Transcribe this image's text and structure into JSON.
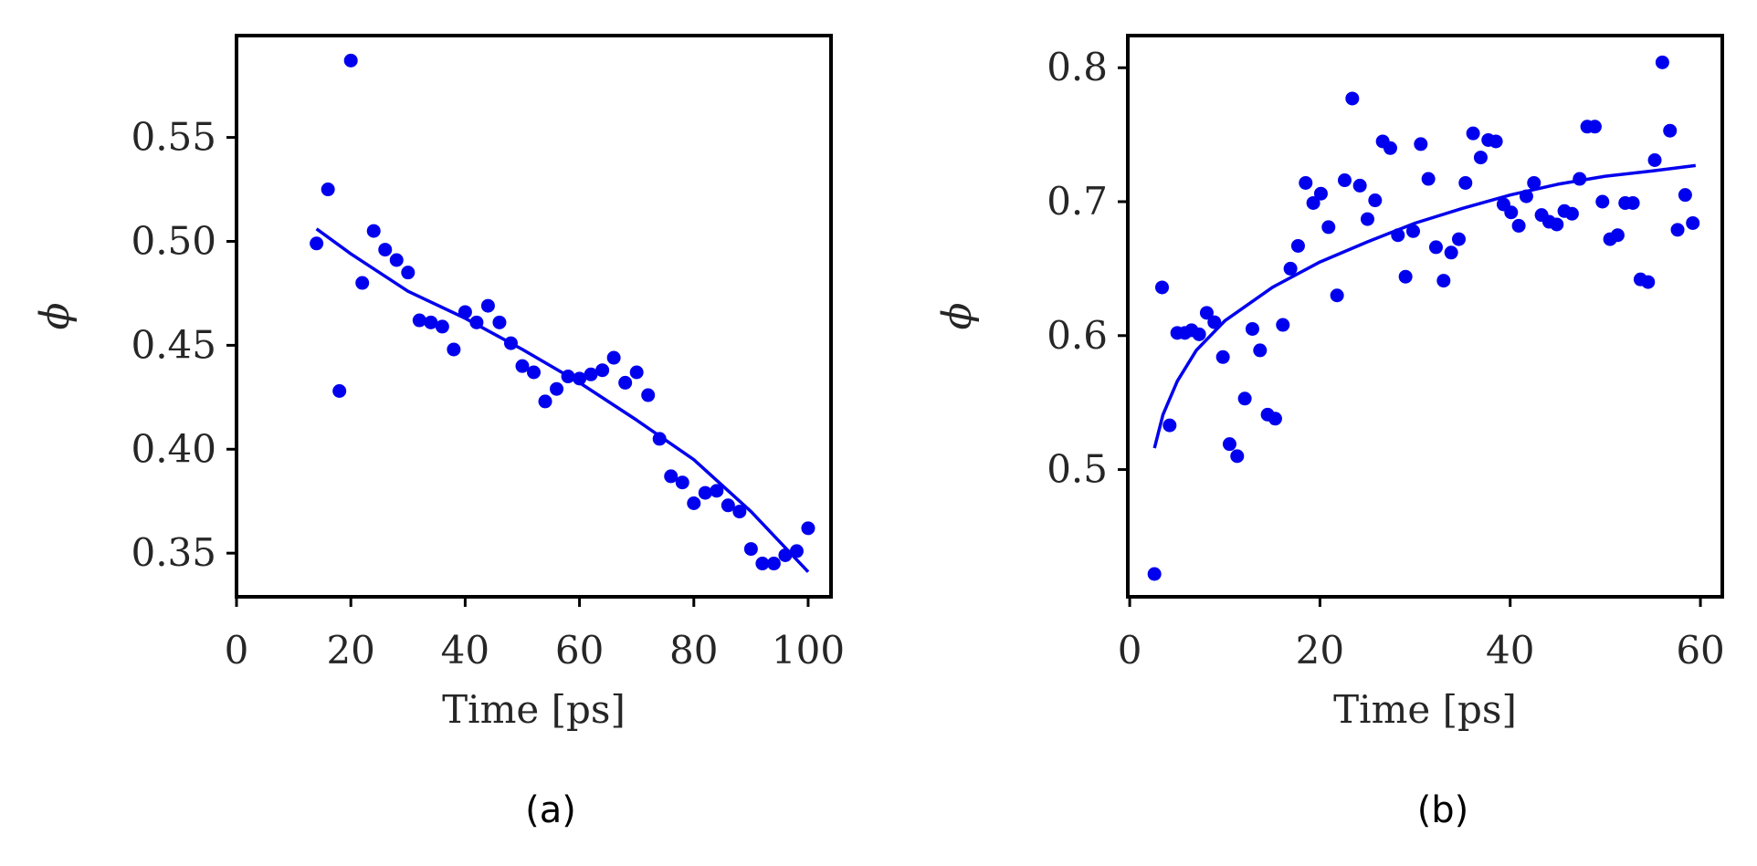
{
  "style": {
    "color": "#0000ee",
    "frame_color": "#000000",
    "text_color": "#262626"
  },
  "chart_data": [
    {
      "type": "scatter",
      "caption": "(a)",
      "xlabel": "Time [ps]",
      "ylabel": "ϕ",
      "xlim": [
        0,
        104
      ],
      "ylim": [
        0.329,
        0.599
      ],
      "xticks": [
        0,
        20,
        40,
        60,
        80,
        100
      ],
      "xtick_labels": [
        "0",
        "20",
        "40",
        "60",
        "80",
        "100"
      ],
      "yticks": [
        0.35,
        0.4,
        0.45,
        0.5,
        0.55
      ],
      "ytick_labels": [
        "0.35",
        "0.40",
        "0.45",
        "0.50",
        "0.55"
      ],
      "grid": false,
      "points": [
        [
          14,
          0.499
        ],
        [
          16,
          0.525
        ],
        [
          18,
          0.428
        ],
        [
          20,
          0.587
        ],
        [
          22,
          0.48
        ],
        [
          24,
          0.505
        ],
        [
          26,
          0.496
        ],
        [
          28,
          0.491
        ],
        [
          30,
          0.485
        ],
        [
          32,
          0.462
        ],
        [
          34,
          0.461
        ],
        [
          36,
          0.459
        ],
        [
          38,
          0.448
        ],
        [
          40,
          0.466
        ],
        [
          42,
          0.461
        ],
        [
          44,
          0.469
        ],
        [
          46,
          0.461
        ],
        [
          48,
          0.451
        ],
        [
          50,
          0.44
        ],
        [
          52,
          0.437
        ],
        [
          54,
          0.423
        ],
        [
          56,
          0.429
        ],
        [
          58,
          0.435
        ],
        [
          60,
          0.434
        ],
        [
          62,
          0.436
        ],
        [
          64,
          0.438
        ],
        [
          66,
          0.444
        ],
        [
          68,
          0.432
        ],
        [
          70,
          0.437
        ],
        [
          72,
          0.426
        ],
        [
          74,
          0.405
        ],
        [
          76,
          0.387
        ],
        [
          78,
          0.384
        ],
        [
          80,
          0.374
        ],
        [
          82,
          0.379
        ],
        [
          84,
          0.38
        ],
        [
          86,
          0.373
        ],
        [
          88,
          0.37
        ],
        [
          90,
          0.352
        ],
        [
          92,
          0.345
        ],
        [
          94,
          0.345
        ],
        [
          96,
          0.349
        ],
        [
          98,
          0.351
        ],
        [
          100,
          0.362
        ]
      ],
      "fit": [
        [
          14,
          0.506
        ],
        [
          20,
          0.494
        ],
        [
          30,
          0.476
        ],
        [
          40,
          0.463
        ],
        [
          50,
          0.448
        ],
        [
          60,
          0.432
        ],
        [
          70,
          0.414
        ],
        [
          80,
          0.395
        ],
        [
          90,
          0.37
        ],
        [
          100,
          0.341
        ]
      ]
    },
    {
      "type": "scatter",
      "caption": "(b)",
      "xlabel": "Time [ps]",
      "ylabel": "ϕ",
      "xlim": [
        -0.2,
        62.3
      ],
      "ylim": [
        0.405,
        0.824
      ],
      "xticks": [
        0,
        20,
        40,
        60
      ],
      "xtick_labels": [
        "0",
        "20",
        "40",
        "60"
      ],
      "yticks": [
        0.5,
        0.6,
        0.7,
        0.8
      ],
      "ytick_labels": [
        "0.5",
        "0.6",
        "0.7",
        "0.8"
      ],
      "grid": false,
      "points": [
        [
          2.6,
          0.422
        ],
        [
          3.4,
          0.636
        ],
        [
          4.2,
          0.533
        ],
        [
          5.0,
          0.602
        ],
        [
          5.8,
          0.602
        ],
        [
          6.5,
          0.604
        ],
        [
          7.3,
          0.601
        ],
        [
          8.1,
          0.617
        ],
        [
          8.9,
          0.61
        ],
        [
          9.8,
          0.584
        ],
        [
          10.5,
          0.519
        ],
        [
          11.3,
          0.51
        ],
        [
          12.1,
          0.553
        ],
        [
          12.9,
          0.605
        ],
        [
          13.7,
          0.589
        ],
        [
          14.5,
          0.541
        ],
        [
          15.3,
          0.538
        ],
        [
          16.1,
          0.608
        ],
        [
          16.9,
          0.65
        ],
        [
          17.7,
          0.667
        ],
        [
          18.5,
          0.714
        ],
        [
          19.3,
          0.699
        ],
        [
          20.1,
          0.706
        ],
        [
          20.9,
          0.681
        ],
        [
          21.8,
          0.63
        ],
        [
          22.6,
          0.716
        ],
        [
          23.4,
          0.777
        ],
        [
          24.2,
          0.712
        ],
        [
          25.0,
          0.687
        ],
        [
          25.8,
          0.701
        ],
        [
          26.6,
          0.745
        ],
        [
          27.4,
          0.74
        ],
        [
          28.2,
          0.675
        ],
        [
          29.0,
          0.644
        ],
        [
          29.8,
          0.678
        ],
        [
          30.6,
          0.743
        ],
        [
          31.4,
          0.717
        ],
        [
          32.2,
          0.666
        ],
        [
          33.0,
          0.641
        ],
        [
          33.8,
          0.662
        ],
        [
          34.6,
          0.672
        ],
        [
          35.3,
          0.714
        ],
        [
          36.1,
          0.751
        ],
        [
          36.9,
          0.733
        ],
        [
          37.7,
          0.746
        ],
        [
          38.5,
          0.745
        ],
        [
          39.3,
          0.698
        ],
        [
          40.1,
          0.692
        ],
        [
          40.9,
          0.682
        ],
        [
          41.7,
          0.704
        ],
        [
          42.5,
          0.714
        ],
        [
          43.3,
          0.69
        ],
        [
          44.1,
          0.685
        ],
        [
          44.9,
          0.683
        ],
        [
          45.7,
          0.693
        ],
        [
          46.5,
          0.691
        ],
        [
          47.3,
          0.717
        ],
        [
          48.1,
          0.756
        ],
        [
          48.9,
          0.756
        ],
        [
          49.7,
          0.7
        ],
        [
          50.5,
          0.672
        ],
        [
          51.3,
          0.675
        ],
        [
          52.1,
          0.699
        ],
        [
          52.9,
          0.699
        ],
        [
          53.7,
          0.642
        ],
        [
          54.5,
          0.64
        ],
        [
          55.2,
          0.731
        ],
        [
          56.0,
          0.804
        ],
        [
          56.8,
          0.753
        ],
        [
          57.6,
          0.679
        ],
        [
          58.4,
          0.705
        ],
        [
          59.2,
          0.684
        ]
      ],
      "fit": [
        [
          2.6,
          0.516
        ],
        [
          3.5,
          0.541
        ],
        [
          5,
          0.566
        ],
        [
          7,
          0.589
        ],
        [
          10,
          0.611
        ],
        [
          15,
          0.636
        ],
        [
          20,
          0.655
        ],
        [
          25,
          0.67
        ],
        [
          30,
          0.684
        ],
        [
          35,
          0.695
        ],
        [
          40,
          0.705
        ],
        [
          45,
          0.713
        ],
        [
          50,
          0.719
        ],
        [
          55,
          0.723
        ],
        [
          59.5,
          0.727
        ]
      ]
    }
  ]
}
